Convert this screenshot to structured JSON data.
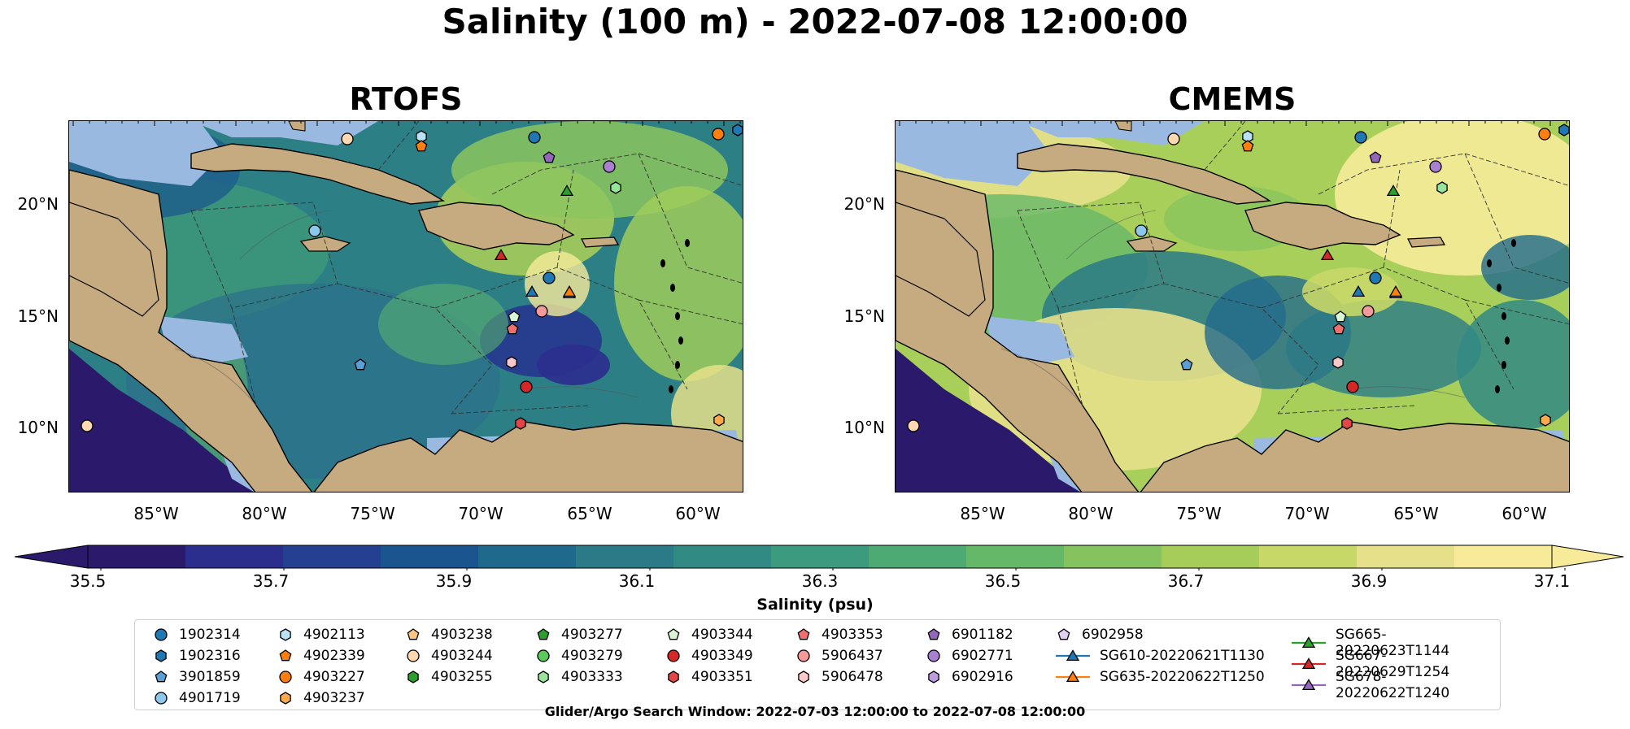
{
  "title": "Salinity (100 m) - 2022-07-08 12:00:00",
  "panels": [
    {
      "title": "RTOFS",
      "scheme": "rtofs"
    },
    {
      "title": "CMEMS",
      "scheme": "cmems"
    }
  ],
  "lat_labels": [
    "20°N",
    "15°N",
    "10°N"
  ],
  "lon_labels": [
    "85°W",
    "80°W",
    "75°W",
    "70°W",
    "65°W",
    "60°W"
  ],
  "colorbar": {
    "label": "Salinity (psu)",
    "ticks": [
      "35.5",
      "35.7",
      "35.9",
      "36.1",
      "36.3",
      "36.5",
      "36.7",
      "36.9",
      "37.1"
    ],
    "colors": [
      "#2b1a6b",
      "#2c2e8e",
      "#253f91",
      "#1b5590",
      "#1f6a8c",
      "#2a7a87",
      "#328a84",
      "#3c9a7e",
      "#4eaa73",
      "#66b869",
      "#85c35e",
      "#a6cd5a",
      "#c7d768",
      "#e6e08a",
      "#f7eb9a"
    ]
  },
  "legend": [
    {
      "label": "1902314",
      "color": "#1f77b4",
      "shape": "circle"
    },
    {
      "label": "1902316",
      "color": "#1f77b4",
      "shape": "hexagon"
    },
    {
      "label": "3901859",
      "color": "#5aa0d6",
      "shape": "pentagon"
    },
    {
      "label": "4901719",
      "color": "#8ec7ec",
      "shape": "circle"
    },
    {
      "label": "4902113",
      "color": "#b9e2f7",
      "shape": "hexagon"
    },
    {
      "label": "4902339",
      "color": "#ff7f0e",
      "shape": "pentagon"
    },
    {
      "label": "4903227",
      "color": "#ff7f0e",
      "shape": "circle"
    },
    {
      "label": "4903237",
      "color": "#ffa94d",
      "shape": "hexagon"
    },
    {
      "label": "4903238",
      "color": "#ffc583",
      "shape": "pentagon"
    },
    {
      "label": "4903244",
      "color": "#ffd7b0",
      "shape": "circle"
    },
    {
      "label": "4903255",
      "color": "#2ca02c",
      "shape": "hexagon"
    },
    {
      "label": "4903277",
      "color": "#2ca02c",
      "shape": "pentagon"
    },
    {
      "label": "4903279",
      "color": "#5ac85a",
      "shape": "circle"
    },
    {
      "label": "4903333",
      "color": "#98e49a",
      "shape": "hexagon"
    },
    {
      "label": "4903344",
      "color": "#d8f6d4",
      "shape": "pentagon"
    },
    {
      "label": "4903349",
      "color": "#d62728",
      "shape": "circle"
    },
    {
      "label": "4903351",
      "color": "#e34646",
      "shape": "hexagon"
    },
    {
      "label": "4903353",
      "color": "#f07070",
      "shape": "pentagon"
    },
    {
      "label": "5906437",
      "color": "#f49a9a",
      "shape": "circle"
    },
    {
      "label": "5906478",
      "color": "#fbc9c9",
      "shape": "hexagon"
    },
    {
      "label": "6901182",
      "color": "#9467bd",
      "shape": "pentagon"
    },
    {
      "label": "6902771",
      "color": "#a97fd0",
      "shape": "circle"
    },
    {
      "label": "6902916",
      "color": "#bf9ce0",
      "shape": "hexagon"
    },
    {
      "label": "6902958",
      "color": "#e2d0f4",
      "shape": "pentagon"
    },
    {
      "label": "SG610-20220621T1130",
      "color": "#1f77b4",
      "shape": "triangle"
    },
    {
      "label": "SG635-20220622T1250",
      "color": "#ff7f0e",
      "shape": "triangle"
    },
    {
      "label": "SG665-20220623T1144",
      "color": "#2ca02c",
      "shape": "triangle"
    },
    {
      "label": "SG667-20220629T1254",
      "color": "#d62728",
      "shape": "triangle"
    },
    {
      "label": "SG678-20220622T1240",
      "color": "#9467bd",
      "shape": "triangle"
    }
  ],
  "search_window": "Glider/Argo Search Window: 2022-07-03 12:00:00 to 2022-07-08 12:00:00"
}
